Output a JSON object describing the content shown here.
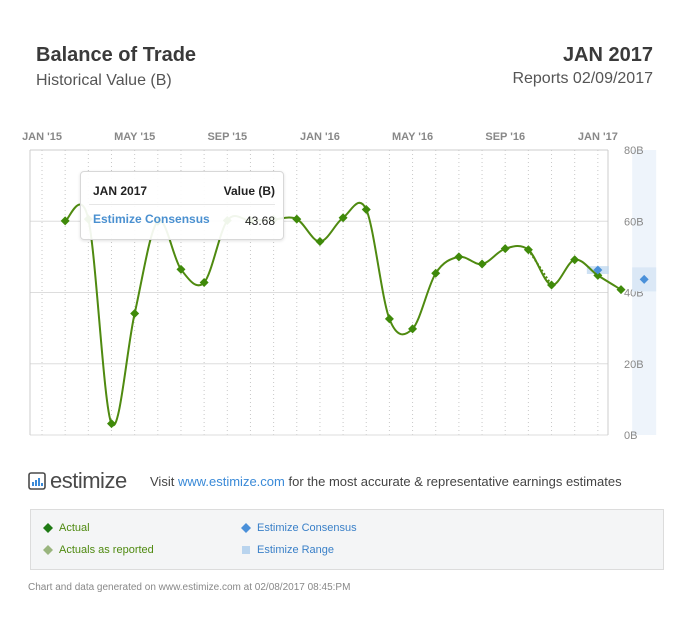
{
  "header": {
    "title": "Balance of Trade",
    "subtitle": "Historical Value (B)",
    "period": "JAN 2017",
    "reports": "Reports 02/09/2017"
  },
  "tooltip": {
    "period": "JAN 2017",
    "column_label": "Value (B)",
    "series_name": "Estimize Consensus",
    "value": "43.68"
  },
  "brand": {
    "name": "estimize",
    "icon": "estimize-logo-icon"
  },
  "promo": {
    "prefix": "Visit ",
    "link": "www.estimize.com",
    "suffix": " for the most accurate & representative earnings estimates"
  },
  "legend": {
    "actual": "Actual",
    "actuals_as_reported": "Actuals as reported",
    "consensus": "Estimize Consensus",
    "range": "Estimize Range"
  },
  "footer": "Chart and data generated on www.estimize.com at 02/08/2017 08:45:PM",
  "colors": {
    "actual": "#4f8a10",
    "actual_marker": "#3f8a0a",
    "as_reported": "#9ab57e",
    "consensus": "#4a90d9",
    "range": "#b9d4ee",
    "highlight_band": "#eef4fb",
    "grid": "#dddddd",
    "axis_text": "#888888"
  },
  "chart_data": {
    "type": "line",
    "x_ticks": [
      "JAN '15",
      "MAY '15",
      "SEP '15",
      "JAN '16",
      "MAY '16",
      "SEP '16",
      "JAN '17"
    ],
    "y_ticks": [
      "0B",
      "20B",
      "40B",
      "60B",
      "80B"
    ],
    "ylim": [
      0,
      80
    ],
    "grid": true,
    "series": [
      {
        "name": "Actual",
        "x": [
          "2014-12",
          "2015-01",
          "2015-02",
          "2015-03",
          "2015-04",
          "2015-05",
          "2015-06",
          "2015-07",
          "2015-08",
          "2015-09",
          "2015-10",
          "2015-11",
          "2015-12",
          "2016-01",
          "2016-02",
          "2016-03",
          "2016-04",
          "2016-05",
          "2016-06",
          "2016-07",
          "2016-08",
          "2016-09",
          "2016-10",
          "2016-11",
          "2016-12"
        ],
        "values": [
          60.1,
          60.6,
          3.2,
          34.1,
          60.0,
          46.5,
          42.8,
          60.2,
          60.2,
          60.5,
          60.6,
          54.3,
          61.0,
          63.3,
          32.6,
          29.8,
          45.4,
          50.0,
          48.0,
          52.3,
          52.0,
          42.1,
          49.2,
          44.8,
          40.8
        ]
      },
      {
        "name": "Actuals as reported",
        "x": [
          "2016-08",
          "2016-09"
        ],
        "values": [
          52.0,
          42.1
        ]
      },
      {
        "name": "Estimize Consensus",
        "x": [
          "2016-11",
          "2017-01"
        ],
        "values": [
          46.3,
          43.68
        ]
      },
      {
        "name": "Estimize Range",
        "x": [
          "2016-11"
        ],
        "low": [
          45.2
        ],
        "high": [
          47.4
        ]
      }
    ]
  }
}
